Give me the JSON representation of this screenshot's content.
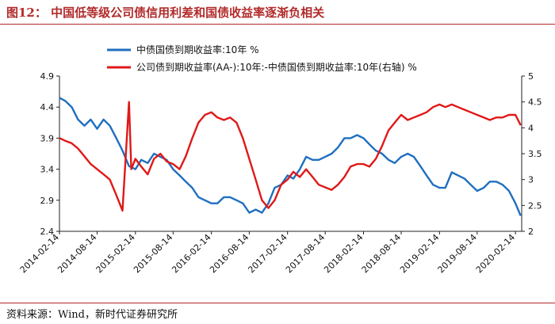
{
  "header": {
    "figure_title": "图12：  中国低等级公司债信用利差和国债收益率逐渐负相关"
  },
  "footer": {
    "source": "资料来源：Wind，新时代证券研究所"
  },
  "colors": {
    "title": "#b22a2a",
    "series_blue": "#1f6fc0",
    "series_red": "#e01818"
  },
  "chart_data": {
    "type": "line",
    "x_type": "date",
    "x_ticks": [
      "2014-02-14",
      "2014-08-14",
      "2015-02-14",
      "2015-08-14",
      "2016-02-14",
      "2016-08-14",
      "2017-02-14",
      "2017-08-14",
      "2018-02-14",
      "2018-08-14",
      "2019-02-14",
      "2019-08-14",
      "2020-02-14"
    ],
    "xlim": [
      "2014-02-14",
      "2020-03-15"
    ],
    "y_left": {
      "ticks": [
        "2.4",
        "2.9",
        "3.4",
        "3.9",
        "4.4",
        "4.9"
      ],
      "lim": [
        2.4,
        4.9
      ]
    },
    "y_right": {
      "ticks": [
        "2",
        "2.5",
        "3",
        "3.5",
        "4",
        "4.5",
        "5"
      ],
      "lim": [
        2,
        5
      ]
    },
    "grid": false,
    "legend_position": "top",
    "series": [
      {
        "name": "中债国债到期收益率:10年 %",
        "axis": "left",
        "color": "#1f6fc0",
        "points": [
          [
            "2014-02-14",
            4.55
          ],
          [
            "2014-03-14",
            4.5
          ],
          [
            "2014-04-14",
            4.4
          ],
          [
            "2014-05-14",
            4.2
          ],
          [
            "2014-06-14",
            4.1
          ],
          [
            "2014-07-14",
            4.2
          ],
          [
            "2014-08-14",
            4.05
          ],
          [
            "2014-09-14",
            4.2
          ],
          [
            "2014-10-14",
            4.1
          ],
          [
            "2014-11-14",
            3.9
          ],
          [
            "2014-12-14",
            3.7
          ],
          [
            "2015-01-14",
            3.45
          ],
          [
            "2015-02-14",
            3.4
          ],
          [
            "2015-03-14",
            3.55
          ],
          [
            "2015-04-14",
            3.5
          ],
          [
            "2015-05-14",
            3.65
          ],
          [
            "2015-06-14",
            3.6
          ],
          [
            "2015-07-14",
            3.55
          ],
          [
            "2015-08-14",
            3.4
          ],
          [
            "2015-09-14",
            3.3
          ],
          [
            "2015-10-14",
            3.2
          ],
          [
            "2015-11-14",
            3.1
          ],
          [
            "2015-12-14",
            2.95
          ],
          [
            "2016-01-14",
            2.9
          ],
          [
            "2016-02-14",
            2.85
          ],
          [
            "2016-03-14",
            2.85
          ],
          [
            "2016-04-14",
            2.95
          ],
          [
            "2016-05-14",
            2.95
          ],
          [
            "2016-06-14",
            2.9
          ],
          [
            "2016-07-14",
            2.85
          ],
          [
            "2016-08-14",
            2.7
          ],
          [
            "2016-09-14",
            2.75
          ],
          [
            "2016-10-14",
            2.7
          ],
          [
            "2016-11-14",
            2.85
          ],
          [
            "2016-12-14",
            3.1
          ],
          [
            "2017-01-14",
            3.15
          ],
          [
            "2017-02-14",
            3.3
          ],
          [
            "2017-03-14",
            3.25
          ],
          [
            "2017-04-14",
            3.4
          ],
          [
            "2017-05-14",
            3.6
          ],
          [
            "2017-06-14",
            3.55
          ],
          [
            "2017-07-14",
            3.55
          ],
          [
            "2017-08-14",
            3.6
          ],
          [
            "2017-09-14",
            3.65
          ],
          [
            "2017-10-14",
            3.75
          ],
          [
            "2017-11-14",
            3.9
          ],
          [
            "2017-12-14",
            3.9
          ],
          [
            "2018-01-14",
            3.95
          ],
          [
            "2018-02-14",
            3.9
          ],
          [
            "2018-03-14",
            3.8
          ],
          [
            "2018-04-14",
            3.7
          ],
          [
            "2018-05-14",
            3.65
          ],
          [
            "2018-06-14",
            3.55
          ],
          [
            "2018-07-14",
            3.5
          ],
          [
            "2018-08-14",
            3.6
          ],
          [
            "2018-09-14",
            3.65
          ],
          [
            "2018-10-14",
            3.6
          ],
          [
            "2018-11-14",
            3.45
          ],
          [
            "2018-12-14",
            3.3
          ],
          [
            "2019-01-14",
            3.15
          ],
          [
            "2019-02-14",
            3.1
          ],
          [
            "2019-03-14",
            3.1
          ],
          [
            "2019-04-14",
            3.35
          ],
          [
            "2019-05-14",
            3.3
          ],
          [
            "2019-06-14",
            3.25
          ],
          [
            "2019-07-14",
            3.15
          ],
          [
            "2019-08-14",
            3.05
          ],
          [
            "2019-09-14",
            3.1
          ],
          [
            "2019-10-14",
            3.2
          ],
          [
            "2019-11-14",
            3.2
          ],
          [
            "2019-12-14",
            3.15
          ],
          [
            "2020-01-14",
            3.05
          ],
          [
            "2020-02-14",
            2.85
          ],
          [
            "2020-03-10",
            2.65
          ]
        ]
      },
      {
        "name": "公司债到期收益率(AA-):10年:-中债国债到期收益率:10年(右轴) %",
        "axis": "right",
        "color": "#e01818",
        "points": [
          [
            "2014-02-14",
            3.8
          ],
          [
            "2014-03-14",
            3.75
          ],
          [
            "2014-04-14",
            3.7
          ],
          [
            "2014-05-14",
            3.6
          ],
          [
            "2014-06-14",
            3.45
          ],
          [
            "2014-07-14",
            3.3
          ],
          [
            "2014-08-14",
            3.2
          ],
          [
            "2014-09-14",
            3.1
          ],
          [
            "2014-10-14",
            3.0
          ],
          [
            "2014-11-14",
            2.7
          ],
          [
            "2014-12-14",
            2.4
          ],
          [
            "2015-01-14",
            4.5
          ],
          [
            "2015-01-25",
            3.2
          ],
          [
            "2015-02-14",
            3.4
          ],
          [
            "2015-03-14",
            3.25
          ],
          [
            "2015-04-14",
            3.1
          ],
          [
            "2015-05-14",
            3.4
          ],
          [
            "2015-06-14",
            3.5
          ],
          [
            "2015-07-14",
            3.35
          ],
          [
            "2015-08-14",
            3.3
          ],
          [
            "2015-09-14",
            3.2
          ],
          [
            "2015-10-14",
            3.45
          ],
          [
            "2015-11-14",
            3.8
          ],
          [
            "2015-12-14",
            4.1
          ],
          [
            "2016-01-14",
            4.25
          ],
          [
            "2016-02-14",
            4.3
          ],
          [
            "2016-03-14",
            4.2
          ],
          [
            "2016-04-14",
            4.15
          ],
          [
            "2016-05-14",
            4.2
          ],
          [
            "2016-06-14",
            4.1
          ],
          [
            "2016-07-14",
            3.8
          ],
          [
            "2016-08-14",
            3.4
          ],
          [
            "2016-09-14",
            3.0
          ],
          [
            "2016-10-14",
            2.6
          ],
          [
            "2016-11-14",
            2.45
          ],
          [
            "2016-12-14",
            2.6
          ],
          [
            "2017-01-14",
            2.9
          ],
          [
            "2017-02-14",
            3.0
          ],
          [
            "2017-03-14",
            3.15
          ],
          [
            "2017-04-14",
            3.05
          ],
          [
            "2017-05-14",
            3.2
          ],
          [
            "2017-06-14",
            3.05
          ],
          [
            "2017-07-14",
            2.9
          ],
          [
            "2017-08-14",
            2.85
          ],
          [
            "2017-09-14",
            2.8
          ],
          [
            "2017-10-14",
            2.9
          ],
          [
            "2017-11-14",
            3.05
          ],
          [
            "2017-12-14",
            3.25
          ],
          [
            "2018-01-14",
            3.3
          ],
          [
            "2018-02-14",
            3.3
          ],
          [
            "2018-03-14",
            3.25
          ],
          [
            "2018-04-14",
            3.4
          ],
          [
            "2018-05-14",
            3.65
          ],
          [
            "2018-06-14",
            3.95
          ],
          [
            "2018-07-14",
            4.1
          ],
          [
            "2018-08-14",
            4.25
          ],
          [
            "2018-09-14",
            4.15
          ],
          [
            "2018-10-14",
            4.2
          ],
          [
            "2018-11-14",
            4.25
          ],
          [
            "2018-12-14",
            4.3
          ],
          [
            "2019-01-14",
            4.4
          ],
          [
            "2019-02-14",
            4.45
          ],
          [
            "2019-03-14",
            4.4
          ],
          [
            "2019-04-14",
            4.45
          ],
          [
            "2019-05-14",
            4.4
          ],
          [
            "2019-06-14",
            4.35
          ],
          [
            "2019-07-14",
            4.3
          ],
          [
            "2019-08-14",
            4.25
          ],
          [
            "2019-09-14",
            4.2
          ],
          [
            "2019-10-14",
            4.15
          ],
          [
            "2019-11-14",
            4.2
          ],
          [
            "2019-12-14",
            4.2
          ],
          [
            "2020-01-14",
            4.25
          ],
          [
            "2020-02-14",
            4.25
          ],
          [
            "2020-03-10",
            4.05
          ]
        ]
      }
    ]
  }
}
